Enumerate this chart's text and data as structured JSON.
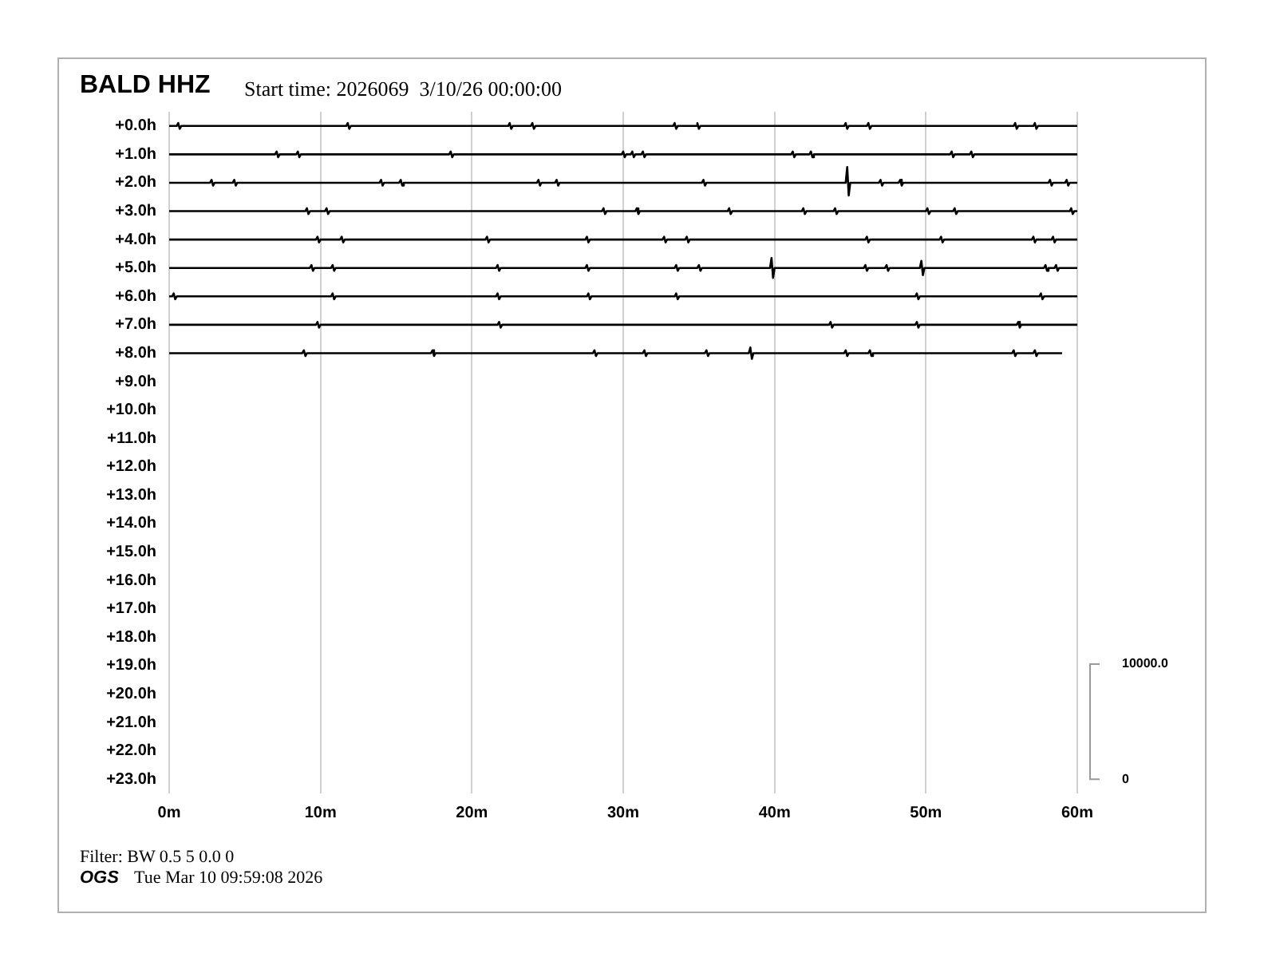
{
  "chart_data": {
    "type": "line",
    "title": "BALD HHZ",
    "subtitle": "Start time: 2026069  3/10/26 00:00:00",
    "annotations": [
      "Filter: BW 0.5 5 0.0 0",
      "OGS",
      "Tue Mar 10 09:59:08 2026"
    ],
    "xlim": [
      0,
      60
    ],
    "xticks": [
      {
        "value": 0,
        "label": "0m"
      },
      {
        "value": 10,
        "label": "10m"
      },
      {
        "value": 20,
        "label": "20m"
      },
      {
        "value": 30,
        "label": "30m"
      },
      {
        "value": 40,
        "label": "40m"
      },
      {
        "value": 50,
        "label": "50m"
      },
      {
        "value": 60,
        "label": "60m"
      }
    ],
    "ylim": [
      23.5,
      -0.5
    ],
    "yticks": [
      {
        "value": 0,
        "label": "+0.0h"
      },
      {
        "value": 1,
        "label": "+1.0h"
      },
      {
        "value": 2,
        "label": "+2.0h"
      },
      {
        "value": 3,
        "label": "+3.0h"
      },
      {
        "value": 4,
        "label": "+4.0h"
      },
      {
        "value": 5,
        "label": "+5.0h"
      },
      {
        "value": 6,
        "label": "+6.0h"
      },
      {
        "value": 7,
        "label": "+7.0h"
      },
      {
        "value": 8,
        "label": "+8.0h"
      },
      {
        "value": 9,
        "label": "+9.0h"
      },
      {
        "value": 10,
        "label": "+10.0h"
      },
      {
        "value": 11,
        "label": "+11.0h"
      },
      {
        "value": 12,
        "label": "+12.0h"
      },
      {
        "value": 13,
        "label": "+13.0h"
      },
      {
        "value": 14,
        "label": "+14.0h"
      },
      {
        "value": 15,
        "label": "+15.0h"
      },
      {
        "value": 16,
        "label": "+16.0h"
      },
      {
        "value": 17,
        "label": "+17.0h"
      },
      {
        "value": 18,
        "label": "+18.0h"
      },
      {
        "value": 19,
        "label": "+19.0h"
      },
      {
        "value": 20,
        "label": "+20.0h"
      },
      {
        "value": 21,
        "label": "+21.0h"
      },
      {
        "value": 22,
        "label": "+22.0h"
      },
      {
        "value": 23,
        "label": "+23.0h"
      }
    ],
    "y2lim": [
      -1235,
      58020
    ],
    "y2ticks": [
      0,
      {
        "value": 10000,
        "label": "10000.0"
      }
    ],
    "grid": "x",
    "legend": false,
    "marker": "none",
    "line_style": "solid",
    "series": [
      {
        "color": "#000000",
        "x": [
          0,
          0.5,
          0.6,
          0.7,
          0.8,
          11.7,
          11.8,
          11.9,
          12,
          22.4,
          22.5,
          22.6,
          22.7,
          23.9,
          24,
          24.1,
          24.2,
          33.3,
          33.4,
          33.5,
          33.6,
          34.8,
          34.9,
          35,
          35.1,
          44.6,
          44.7,
          44.8,
          44.9,
          46.1,
          46.2,
          46.3,
          46.4,
          55.8,
          55.9,
          56,
          56.1,
          57.1,
          57.2,
          57.3,
          57.4,
          60
        ],
        "values": [
          0,
          0,
          -0.1,
          0.1,
          0,
          0,
          -0.1,
          0.1,
          0,
          0,
          -0.1,
          0.1,
          0,
          0,
          -0.1,
          0.1,
          0,
          0,
          -0.1,
          0.1,
          0,
          0,
          -0.1,
          0.1,
          0,
          0,
          -0.1,
          0.1,
          0,
          0,
          -0.1,
          0.1,
          0,
          0,
          -0.1,
          0.1,
          0,
          0,
          -0.1,
          0.1,
          0,
          0
        ]
      },
      {
        "color": "#000000",
        "x": [
          0,
          7,
          7.1,
          7.2,
          7.3,
          8.4,
          8.5,
          8.6,
          8.7,
          18.5,
          18.6,
          18.7,
          18.8,
          29.9,
          30,
          30.1,
          30.2,
          30.5,
          30.6,
          30.7,
          30.8,
          31.2,
          31.3,
          31.4,
          31.5,
          41.1,
          41.2,
          41.3,
          41.4,
          42.3,
          42.4,
          42.5,
          42.6,
          51.6,
          51.7,
          51.8,
          51.9,
          52.9,
          53,
          53.1,
          53.2,
          60
        ],
        "values": [
          1,
          1,
          0.9,
          1.1,
          1,
          1,
          0.9,
          1.1,
          1,
          1,
          0.9,
          1.1,
          1,
          1,
          0.9,
          1.1,
          1,
          1,
          0.9,
          1.1,
          1,
          1,
          0.9,
          1.1,
          1,
          1,
          0.9,
          1.1,
          1,
          1,
          0.9,
          1.1,
          1,
          1,
          0.9,
          1.1,
          1,
          1,
          0.9,
          1.1,
          1,
          1
        ]
      },
      {
        "color": "#000000",
        "x": [
          0,
          2.7,
          2.8,
          2.9,
          3,
          4.2,
          4.3,
          4.4,
          4.5,
          13.9,
          14,
          14.1,
          14.2,
          15.2,
          15.3,
          15.4,
          15.5,
          24.3,
          24.4,
          24.5,
          24.6,
          25.5,
          25.6,
          25.7,
          25.8,
          35.2,
          35.3,
          35.4,
          35.5,
          44.7,
          44.8,
          44.9,
          45,
          46.9,
          47,
          47.1,
          47.2,
          48.2,
          48.3,
          48.4,
          48.5,
          58.1,
          58.2,
          58.3,
          58.4,
          59.2,
          59.3,
          59.4,
          59.5,
          60
        ],
        "values": [
          2,
          2,
          1.9,
          2.1,
          2,
          2,
          1.9,
          2.1,
          2,
          2,
          1.9,
          2.1,
          2,
          2,
          1.9,
          2.1,
          2,
          2,
          1.9,
          2.1,
          2,
          2,
          1.9,
          2.1,
          2,
          2,
          1.9,
          2.1,
          2,
          2,
          1.45,
          2.45,
          2,
          2,
          1.9,
          2.1,
          2,
          2,
          1.9,
          2.1,
          2,
          2,
          1.9,
          2.1,
          2,
          2,
          1.9,
          2.1,
          2,
          2
        ]
      },
      {
        "color": "#000000",
        "x": [
          0,
          9,
          9.1,
          9.2,
          9.3,
          10.3,
          10.4,
          10.5,
          10.6,
          28.6,
          28.7,
          28.8,
          28.9,
          30.8,
          30.9,
          31,
          31.1,
          36.9,
          37,
          37.1,
          37.2,
          41.8,
          41.9,
          42,
          42.1,
          43.9,
          44,
          44.1,
          44.2,
          50,
          50.1,
          50.2,
          50.3,
          51.8,
          51.9,
          52,
          52.1,
          59.5,
          59.6,
          59.7,
          59.8,
          60
        ],
        "values": [
          3,
          3,
          2.9,
          3.1,
          3,
          3,
          2.9,
          3.1,
          3,
          3,
          2.9,
          3.1,
          3,
          3,
          2.9,
          3.1,
          3,
          3,
          2.9,
          3.1,
          3,
          3,
          2.9,
          3.1,
          3,
          3,
          2.9,
          3.1,
          3,
          3,
          2.9,
          3.1,
          3,
          3,
          2.9,
          3.1,
          3,
          3,
          2.9,
          3.1,
          3,
          3
        ]
      },
      {
        "color": "#000000",
        "x": [
          0,
          9.7,
          9.8,
          9.9,
          10,
          11.3,
          11.4,
          11.5,
          11.6,
          20.9,
          21,
          21.1,
          21.2,
          27.5,
          27.6,
          27.7,
          27.8,
          32.6,
          32.7,
          32.8,
          32.9,
          34.1,
          34.2,
          34.3,
          34.4,
          46,
          46.1,
          46.2,
          46.3,
          50.9,
          51,
          51.1,
          51.2,
          57,
          57.1,
          57.2,
          57.3,
          58.3,
          58.4,
          58.5,
          58.6,
          60
        ],
        "values": [
          4,
          4,
          3.9,
          4.1,
          4,
          4,
          3.9,
          4.1,
          4,
          4,
          3.9,
          4.1,
          4,
          4,
          3.9,
          4.1,
          4,
          4,
          3.9,
          4.1,
          4,
          4,
          3.9,
          4.1,
          4,
          4,
          3.9,
          4.1,
          4,
          4,
          3.9,
          4.1,
          4,
          4,
          3.9,
          4.1,
          4,
          4,
          3.9,
          4.1,
          4,
          4
        ]
      },
      {
        "color": "#000000",
        "x": [
          0,
          9.3,
          9.4,
          9.5,
          9.6,
          10.7,
          10.8,
          10.9,
          11,
          21.6,
          21.7,
          21.8,
          21.9,
          27.5,
          27.6,
          27.7,
          27.8,
          33.4,
          33.5,
          33.6,
          33.7,
          34.9,
          35,
          35.1,
          35.2,
          39.7,
          39.8,
          39.9,
          40,
          45.9,
          46,
          46.1,
          46.2,
          47.3,
          47.4,
          47.5,
          47.6,
          49.6,
          49.7,
          49.8,
          49.9,
          57.8,
          57.9,
          58,
          58.1,
          58.5,
          58.6,
          58.7,
          58.8,
          60
        ],
        "values": [
          5,
          5,
          4.9,
          5.1,
          5,
          5,
          4.9,
          5.1,
          5,
          5,
          4.9,
          5.1,
          5,
          5,
          4.9,
          5.1,
          5,
          5,
          4.9,
          5.1,
          5,
          5,
          4.9,
          5.1,
          5,
          5,
          4.65,
          5.35,
          5,
          5,
          4.9,
          5.1,
          5,
          5,
          4.9,
          5.1,
          5,
          5,
          4.75,
          5.25,
          5,
          5,
          4.9,
          5.1,
          5,
          5,
          4.9,
          5.1,
          5,
          5
        ]
      },
      {
        "color": "#000000",
        "x": [
          0,
          0.2,
          0.3,
          0.4,
          0.5,
          10.7,
          10.8,
          10.9,
          11,
          21.6,
          21.7,
          21.8,
          21.9,
          27.6,
          27.7,
          27.8,
          27.9,
          33.4,
          33.5,
          33.6,
          33.7,
          49.3,
          49.4,
          49.5,
          49.6,
          57.5,
          57.6,
          57.7,
          57.8,
          60
        ],
        "values": [
          6,
          6,
          5.9,
          6.1,
          6,
          6,
          5.9,
          6.1,
          6,
          6,
          5.9,
          6.1,
          6,
          6,
          5.9,
          6.1,
          6,
          6,
          5.9,
          6.1,
          6,
          6,
          5.9,
          6.1,
          6,
          6,
          5.9,
          6.1,
          6,
          6
        ]
      },
      {
        "color": "#000000",
        "x": [
          0,
          9.7,
          9.8,
          9.9,
          10,
          21.7,
          21.8,
          21.9,
          22,
          43.6,
          43.7,
          43.8,
          43.9,
          49.3,
          49.4,
          49.5,
          49.6,
          56,
          56.1,
          56.2,
          56.3,
          60
        ],
        "values": [
          7,
          7,
          6.9,
          7.1,
          7,
          7,
          6.9,
          7.1,
          7,
          7,
          6.9,
          7.1,
          7,
          7,
          6.9,
          7.1,
          7,
          7,
          6.9,
          7.1,
          7,
          7
        ]
      },
      {
        "color": "#000000",
        "x": [
          0,
          8.8,
          8.9,
          9,
          9.1,
          17.3,
          17.4,
          17.5,
          17.6,
          28,
          28.1,
          28.2,
          28.3,
          31.3,
          31.4,
          31.5,
          31.6,
          35.4,
          35.5,
          35.6,
          35.7,
          38.3,
          38.4,
          38.5,
          38.6,
          44.6,
          44.7,
          44.8,
          44.9,
          46.2,
          46.3,
          46.4,
          46.5,
          55.7,
          55.8,
          55.9,
          56,
          57.1,
          57.2,
          57.3,
          57.4,
          59
        ],
        "values": [
          8,
          8,
          7.9,
          8.1,
          8,
          8,
          7.9,
          8.1,
          8,
          8,
          7.9,
          8.1,
          8,
          8,
          7.9,
          8.1,
          8,
          8,
          7.9,
          8.1,
          8,
          8,
          7.8,
          8.2,
          8,
          8,
          7.9,
          8.1,
          8,
          8,
          7.9,
          8.1,
          8,
          8,
          7.9,
          8.1,
          8,
          8,
          7.9,
          8.1,
          8,
          8
        ]
      }
    ]
  }
}
